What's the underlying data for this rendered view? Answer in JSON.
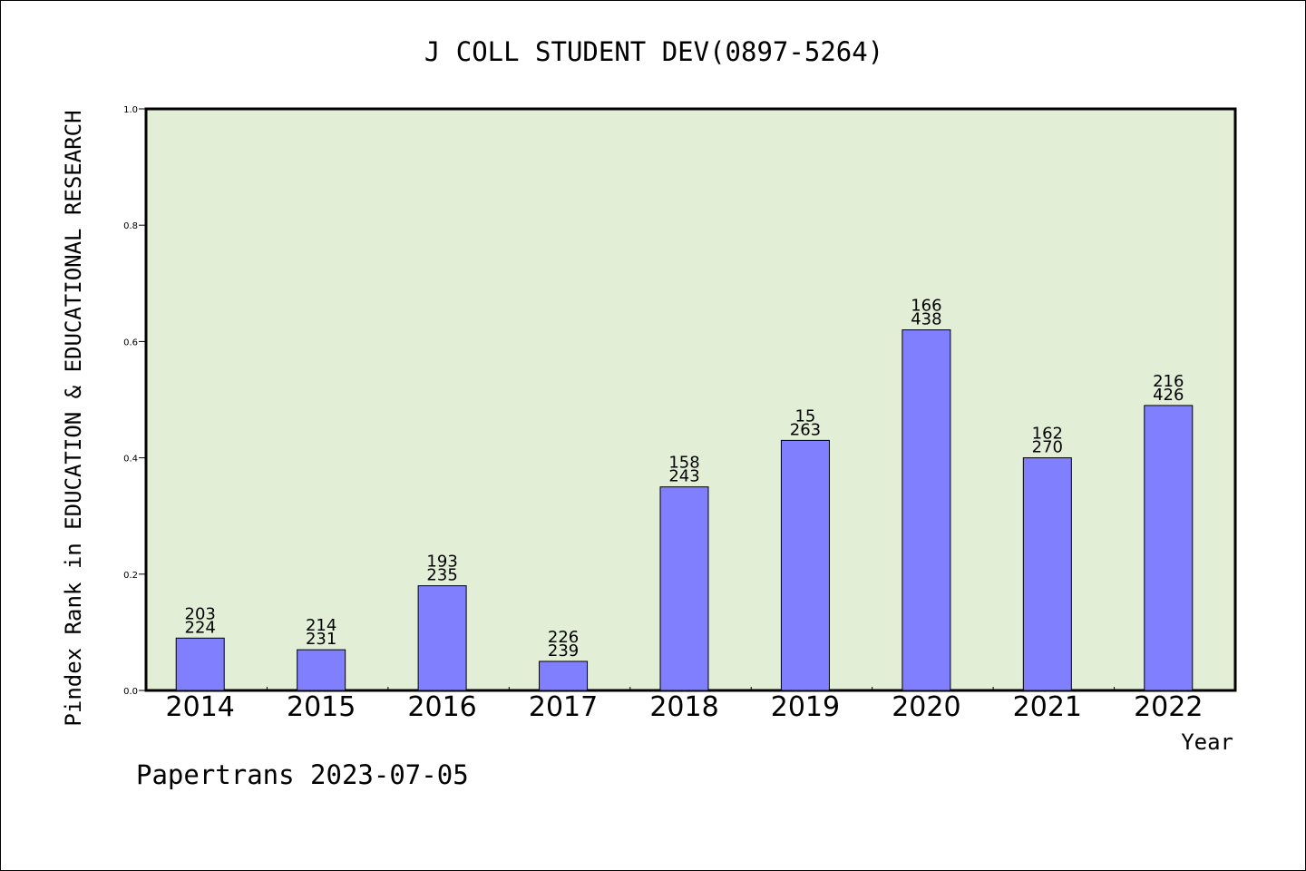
{
  "chart_data": {
    "type": "bar",
    "title": "J COLL STUDENT DEV(0897-5264)",
    "xlabel": "Year",
    "ylabel": "Pindex Rank in EDUCATION & EDUCATIONAL RESEARCH",
    "ylim": [
      0,
      1.0
    ],
    "yticks": [
      "0.0",
      "0.2",
      "0.4",
      "0.6",
      "0.8",
      "1.0"
    ],
    "categories": [
      "2014",
      "2015",
      "2016",
      "2017",
      "2018",
      "2019",
      "2020",
      "2021",
      "2022"
    ],
    "values": [
      0.09,
      0.07,
      0.18,
      0.05,
      0.35,
      0.43,
      0.62,
      0.4,
      0.49
    ],
    "labels_top": [
      "203",
      "214",
      "193",
      "226",
      "158",
      "15",
      "166",
      "162",
      "216"
    ],
    "labels_bottom": [
      "224",
      "231",
      "235",
      "239",
      "243",
      "263",
      "438",
      "270",
      "426"
    ],
    "grid": false,
    "colors": {
      "plot_bg": "#e2efd6",
      "bar": "#8080ff",
      "bar_stroke": "#000000"
    }
  },
  "footer": "Papertrans 2023-07-05"
}
